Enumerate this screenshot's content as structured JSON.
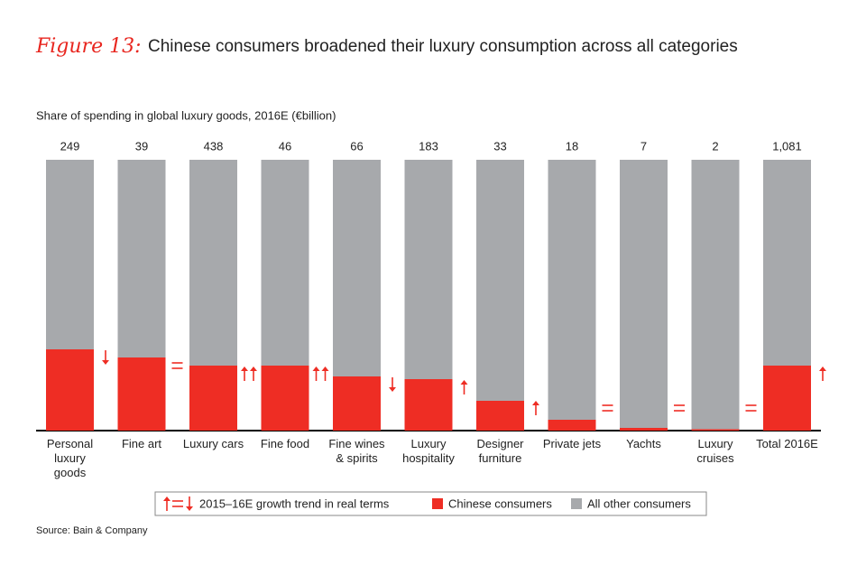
{
  "chart_data": {
    "type": "stacked_bar_100",
    "figure_label": "Figure 13:",
    "title": "Chinese consumers broadened their luxury consumption across all categories",
    "subtitle": "Share of spending in global luxury goods, 2016E (€billion)",
    "source": "Source: Bain & Company",
    "categories": [
      "Personal\nluxury\ngoods",
      "Fine art",
      "Luxury cars",
      "Fine food",
      "Fine wines\n& spirits",
      "Luxury\nhospitality",
      "Designer\nfurniture",
      "Private jets",
      "Yachts",
      "Luxury\ncruises",
      "Total 2016E"
    ],
    "ylim": [
      0,
      100
    ],
    "series": [
      {
        "name": "Chinese consumers",
        "color": "#ee2d24",
        "values": [
          30,
          27,
          24,
          24,
          20,
          19,
          11,
          4,
          1,
          0.5,
          24
        ]
      },
      {
        "name": "All other consumers",
        "color": "#a7a9ac",
        "values": [
          70,
          73,
          76,
          76,
          80,
          81,
          89,
          96,
          99,
          99.5,
          76
        ]
      }
    ],
    "totals": {
      "values": [
        249,
        39,
        438,
        46,
        66,
        183,
        33,
        18,
        7,
        2,
        1081
      ],
      "value_labels": [
        "249",
        "39",
        "438",
        "46",
        "66",
        "183",
        "33",
        "18",
        "7",
        "2",
        "1,081"
      ]
    },
    "trends": [
      "down",
      "equal",
      "up2",
      "up2",
      "down",
      "up",
      "up",
      "equal",
      "equal",
      "equal",
      "up"
    ],
    "trend_legend": "2015–16E growth trend in real terms",
    "trend_color": "#ee2d24"
  }
}
